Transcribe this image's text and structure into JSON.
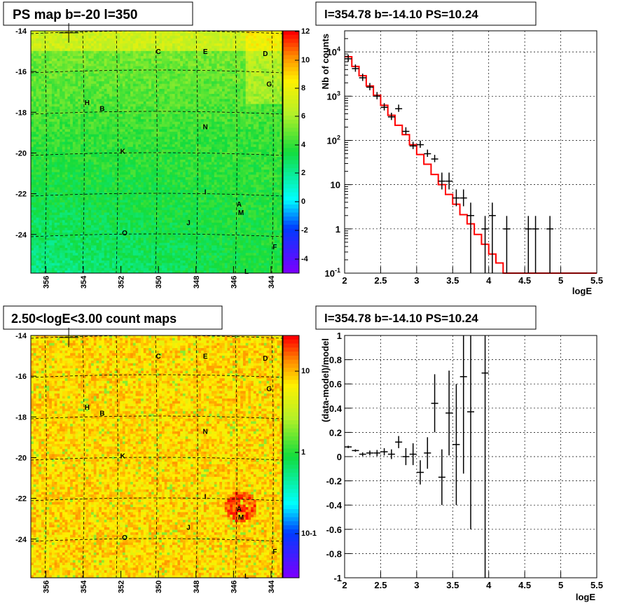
{
  "panels": {
    "ps_map": {
      "title": "PS map b=-20 l=350",
      "colorbar_ticks": [
        "12",
        "10",
        "8",
        "6",
        "4",
        "2",
        "0",
        "-2",
        "-4"
      ]
    },
    "count_map": {
      "title": "2.50<logE<3.00 count maps",
      "colorbar_ticks": [
        "10",
        "1",
        "10-1"
      ]
    },
    "spectrum": {
      "title": "l=354.78 b=-14.10 PS=10.24"
    },
    "residual": {
      "title": "l=354.78 b=-14.10 PS=10.24"
    }
  },
  "colors": {
    "model_line": "#ff0000",
    "data_marker": "#000000"
  },
  "chart_data": [
    {
      "type": "heatmap",
      "name": "PS map",
      "x_ticks": [
        "356",
        "354",
        "352",
        "350",
        "348",
        "346",
        "344"
      ],
      "y_ticks": [
        "-14",
        "-16",
        "-18",
        "-20",
        "-22",
        "-24"
      ],
      "x_range": [
        356.8,
        343.4
      ],
      "y_range": [
        -25.9,
        -14
      ],
      "z_range": [
        -5,
        12
      ],
      "sources": [
        {
          "label": "C",
          "l": 350,
          "b": -15
        },
        {
          "label": "E",
          "l": 347.5,
          "b": -15
        },
        {
          "label": "D",
          "l": 344.3,
          "b": -15.1
        },
        {
          "label": "G",
          "l": 344.1,
          "b": -16.6
        },
        {
          "label": "H",
          "l": 353.8,
          "b": -17.5
        },
        {
          "label": "B",
          "l": 353,
          "b": -17.8
        },
        {
          "label": "N",
          "l": 347.5,
          "b": -18.7
        },
        {
          "label": "K",
          "l": 351.9,
          "b": -19.9
        },
        {
          "label": "I",
          "l": 347.5,
          "b": -21.9
        },
        {
          "label": "A",
          "l": 345.7,
          "b": -22.5
        },
        {
          "label": "M",
          "l": 345.6,
          "b": -22.9
        },
        {
          "label": "J",
          "l": 348.4,
          "b": -23.4
        },
        {
          "label": "O",
          "l": 351.8,
          "b": -23.9
        },
        {
          "label": "F",
          "l": 343.8,
          "b": -24.6
        },
        {
          "label": "L",
          "l": 345.3,
          "b": -25.8
        }
      ],
      "marker": {
        "l": 354.78,
        "b": -14.1
      }
    },
    {
      "type": "heatmap",
      "name": "count map",
      "x_ticks": [
        "356",
        "354",
        "352",
        "350",
        "348",
        "346",
        "344"
      ],
      "y_ticks": [
        "-14",
        "-16",
        "-18",
        "-20",
        "-22",
        "-24"
      ],
      "x_range": [
        356.8,
        343.4
      ],
      "y_range": [
        -25.9,
        -14
      ],
      "z_scale": "log"
    },
    {
      "type": "line",
      "name": "spectrum",
      "xlabel": "logE",
      "ylabel": "Nb of counts",
      "xlim": [
        2,
        5.5
      ],
      "ylim": [
        0.1,
        30000
      ],
      "y_scale": "log",
      "x_ticks": [
        "2",
        "2.5",
        "3",
        "3.5",
        "4",
        "4.5",
        "5",
        "5.5"
      ],
      "y_ticks": [
        "10-1",
        "1",
        "10",
        "102",
        "103",
        "104"
      ],
      "model_steps": [
        [
          2.0,
          7800
        ],
        [
          2.1,
          4700
        ],
        [
          2.2,
          2900
        ],
        [
          2.3,
          1700
        ],
        [
          2.4,
          1050
        ],
        [
          2.5,
          620
        ],
        [
          2.6,
          370
        ],
        [
          2.7,
          220
        ],
        [
          2.8,
          135
        ],
        [
          2.9,
          80
        ],
        [
          3.0,
          48
        ],
        [
          3.1,
          29
        ],
        [
          3.2,
          17
        ],
        [
          3.3,
          10
        ],
        [
          3.4,
          6
        ],
        [
          3.5,
          3.6
        ],
        [
          3.6,
          2.1
        ],
        [
          3.7,
          1.3
        ],
        [
          3.8,
          0.75
        ],
        [
          3.9,
          0.45
        ],
        [
          4.0,
          0.27
        ],
        [
          4.1,
          0.17
        ],
        [
          4.2,
          0.1
        ],
        [
          4.3,
          0.1
        ],
        [
          5.5,
          0.1
        ]
      ],
      "data_points": [
        {
          "x": 2.05,
          "y": 7000
        },
        {
          "x": 2.15,
          "y": 4200
        },
        {
          "x": 2.25,
          "y": 2600
        },
        {
          "x": 2.35,
          "y": 1600
        },
        {
          "x": 2.45,
          "y": 1000
        },
        {
          "x": 2.55,
          "y": 560
        },
        {
          "x": 2.65,
          "y": 340
        },
        {
          "x": 2.75,
          "y": 520
        },
        {
          "x": 2.85,
          "y": 160
        },
        {
          "x": 2.95,
          "y": 75
        },
        {
          "x": 3.05,
          "y": 80
        },
        {
          "x": 3.15,
          "y": 50
        },
        {
          "x": 3.25,
          "y": 38
        },
        {
          "x": 3.35,
          "y": 12
        },
        {
          "x": 3.45,
          "y": 12
        },
        {
          "x": 3.55,
          "y": 5
        },
        {
          "x": 3.65,
          "y": 5
        },
        {
          "x": 3.75,
          "y": 2
        },
        {
          "x": 3.95,
          "y": 1
        },
        {
          "x": 4.05,
          "y": 2
        },
        {
          "x": 4.25,
          "y": 1
        },
        {
          "x": 4.55,
          "y": 1
        },
        {
          "x": 4.65,
          "y": 1
        },
        {
          "x": 4.85,
          "y": 1
        }
      ]
    },
    {
      "type": "scatter",
      "name": "residual",
      "xlabel": "logE",
      "ylabel": "(data-model)/model",
      "xlim": [
        2,
        5.5
      ],
      "ylim": [
        -1,
        1
      ],
      "x_ticks": [
        "2",
        "2.5",
        "3",
        "3.5",
        "4",
        "4.5",
        "5",
        "5.5"
      ],
      "y_ticks": [
        "-1",
        "-0.8",
        "-0.6",
        "-0.4",
        "-0.2",
        "0",
        "0.2",
        "0.4",
        "0.6",
        "0.8",
        "1"
      ],
      "data_points": [
        {
          "x": 2.05,
          "y": 0.08,
          "err": 0.01
        },
        {
          "x": 2.15,
          "y": 0.05,
          "err": 0.01
        },
        {
          "x": 2.25,
          "y": 0.02,
          "err": 0.015
        },
        {
          "x": 2.35,
          "y": 0.03,
          "err": 0.02
        },
        {
          "x": 2.45,
          "y": 0.03,
          "err": 0.025
        },
        {
          "x": 2.55,
          "y": 0.04,
          "err": 0.03
        },
        {
          "x": 2.65,
          "y": 0.02,
          "err": 0.04
        },
        {
          "x": 2.75,
          "y": 0.12,
          "err": 0.05
        },
        {
          "x": 2.85,
          "y": 0.0,
          "err": 0.07
        },
        {
          "x": 2.95,
          "y": 0.02,
          "err": 0.09
        },
        {
          "x": 3.05,
          "y": -0.13,
          "err": 0.1
        },
        {
          "x": 3.15,
          "y": 0.03,
          "err": 0.13
        },
        {
          "x": 3.25,
          "y": 0.44,
          "err": 0.24
        },
        {
          "x": 3.35,
          "y": -0.17,
          "err": 0.23
        },
        {
          "x": 3.45,
          "y": 0.36,
          "err": 0.35
        },
        {
          "x": 3.55,
          "y": 0.1,
          "err": 0.5
        },
        {
          "x": 3.65,
          "y": 0.66,
          "err": 0.8
        },
        {
          "x": 3.75,
          "y": 0.37,
          "err": 0.97
        },
        {
          "x": 3.95,
          "y": 0.69,
          "err": 1.7
        }
      ]
    }
  ]
}
